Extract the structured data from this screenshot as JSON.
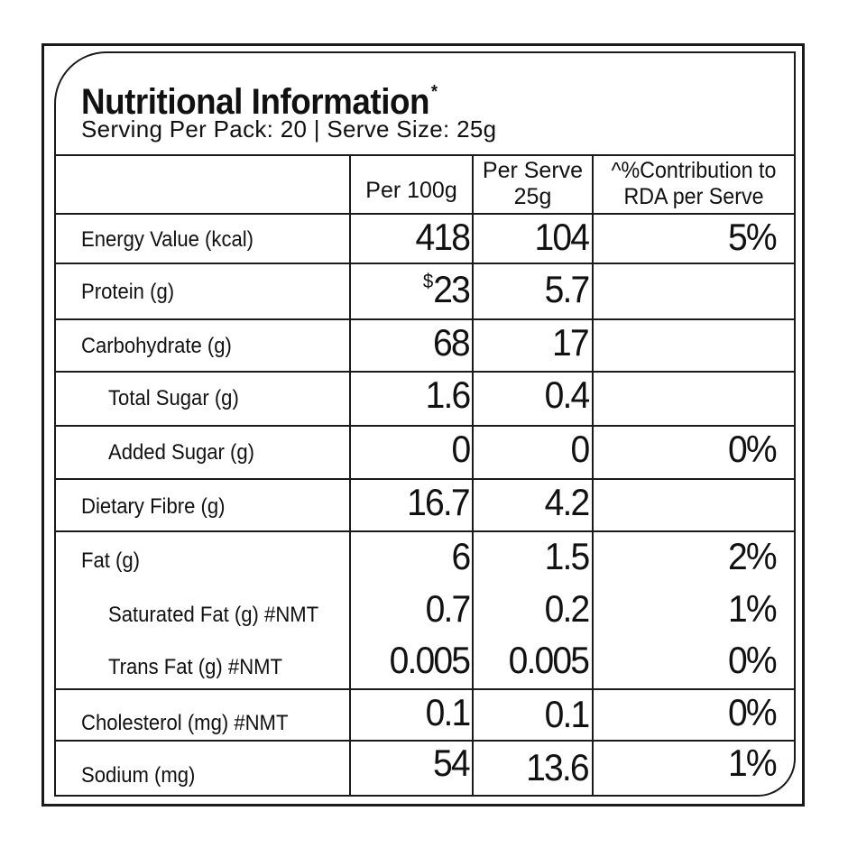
{
  "title": "Nutritional Information",
  "title_mark": "*",
  "serving": "Serving Per Pack: 20 | Serve Size: 25g",
  "headers": {
    "per100_line1": "Per 100g",
    "perserve_line1": "Per Serve",
    "perserve_line2": "25g",
    "rda_line1": "^%Contribution to",
    "rda_line2": "RDA per Serve"
  },
  "rows": [
    {
      "label": "Energy Value (kcal)",
      "per100": "418",
      "perserve": "104",
      "rda": "5%"
    },
    {
      "label": "Protein (g)",
      "per100_mark": "$",
      "per100": "23",
      "perserve": "5.7",
      "rda": ""
    },
    {
      "label": "Carbohydrate (g)",
      "per100": "68",
      "perserve": "17",
      "rda": ""
    },
    {
      "label": "Total Sugar (g)",
      "per100": "1.6",
      "perserve": "0.4",
      "rda": ""
    },
    {
      "label": "Added Sugar (g)",
      "per100": "0",
      "perserve": "0",
      "rda": "0%"
    },
    {
      "label": "Dietary Fibre (g)",
      "per100": "16.7",
      "perserve": "4.2",
      "rda": ""
    },
    {
      "label": "Fat (g)",
      "per100": "6",
      "perserve": "1.5",
      "rda": "2%"
    },
    {
      "label": "Saturated Fat (g) #NMT",
      "per100": "0.7",
      "perserve": "0.2",
      "rda": "1%"
    },
    {
      "label": "Trans Fat (g) #NMT",
      "per100": "0.005",
      "perserve": "0.005",
      "rda": "0%"
    },
    {
      "label": "Cholesterol (mg)  #NMT",
      "per100": "0.1",
      "perserve": "0.1",
      "rda": "0%"
    },
    {
      "label": "Sodium (mg)",
      "per100": "54",
      "perserve": "13.6",
      "rda": "1%"
    }
  ]
}
